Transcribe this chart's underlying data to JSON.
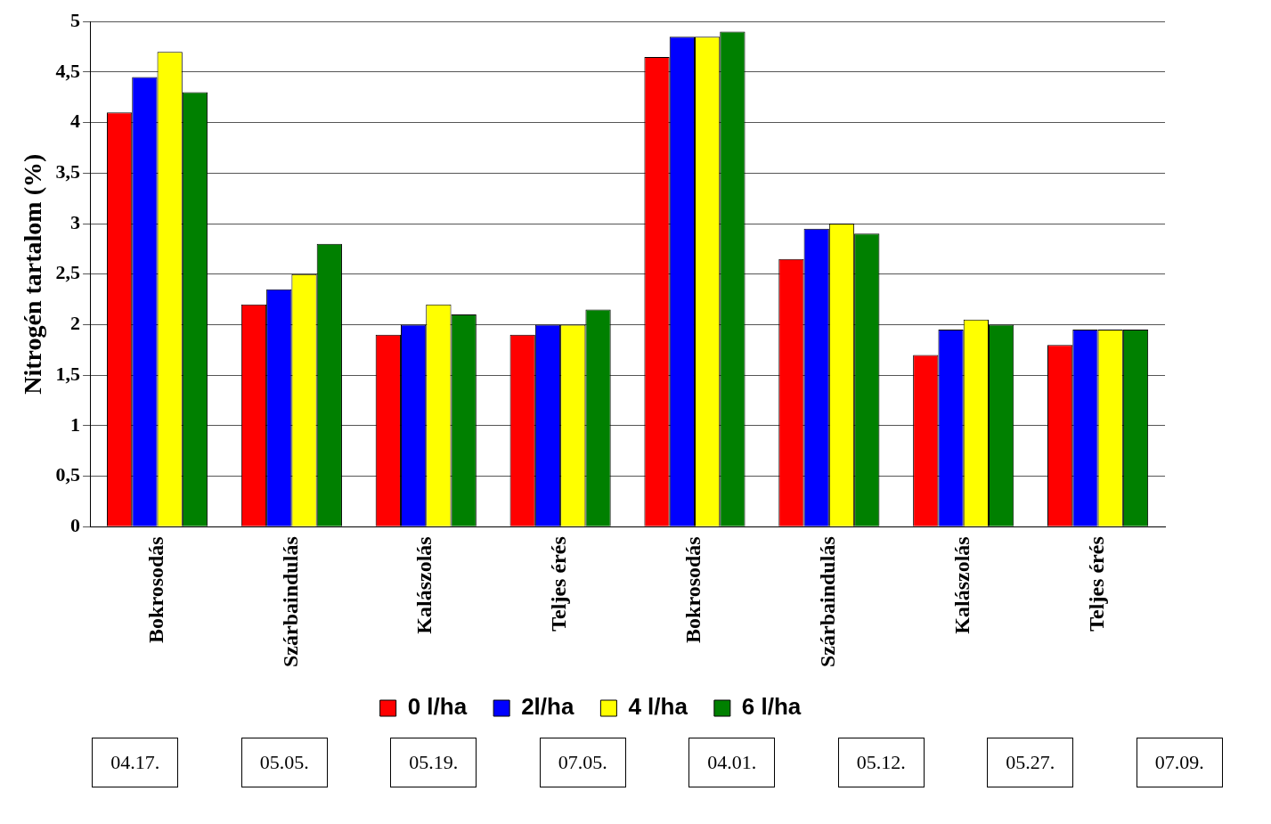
{
  "chart_data": {
    "type": "bar",
    "ylabel": "Nitrogén tartalom (%)",
    "categories": [
      "Bokrosodás",
      "Szárbaindulás",
      "Kalászolás",
      "Teljes érés",
      "Bokrosodás",
      "Szárbaindulás",
      "Kalászolás",
      "Teljes érés"
    ],
    "series": [
      {
        "name": "0 l/ha",
        "color": "#ff0000",
        "values": [
          4.1,
          2.2,
          1.9,
          1.9,
          4.65,
          2.65,
          1.7,
          1.8
        ]
      },
      {
        "name": "2l/ha",
        "color": "#0000ff",
        "values": [
          4.45,
          2.35,
          2.0,
          2.0,
          4.85,
          2.95,
          1.95,
          1.95
        ]
      },
      {
        "name": "4 l/ha",
        "color": "#ffff00",
        "values": [
          4.7,
          2.5,
          2.2,
          2.0,
          4.85,
          3.0,
          2.05,
          1.95
        ]
      },
      {
        "name": "6 l/ha",
        "color": "#008000",
        "values": [
          4.3,
          2.8,
          2.1,
          2.15,
          4.9,
          2.9,
          2.0,
          1.95
        ]
      }
    ],
    "ylim": [
      0,
      5
    ],
    "yticks": [
      0,
      {
        "value": 0.5,
        "label": "0,5"
      },
      1,
      {
        "value": 1.5,
        "label": "1,5"
      },
      2,
      {
        "value": 2.5,
        "label": "2,5"
      },
      3,
      {
        "value": 3.5,
        "label": "3,5"
      },
      4,
      {
        "value": 4.5,
        "label": "4,5"
      },
      5
    ],
    "grid": "y",
    "legend": "bottom",
    "annotations": [
      "04.17.",
      "05.05.",
      "05.19.",
      "07.05.",
      "04.01.",
      "05.12.",
      "05.27.",
      "07.09."
    ]
  }
}
